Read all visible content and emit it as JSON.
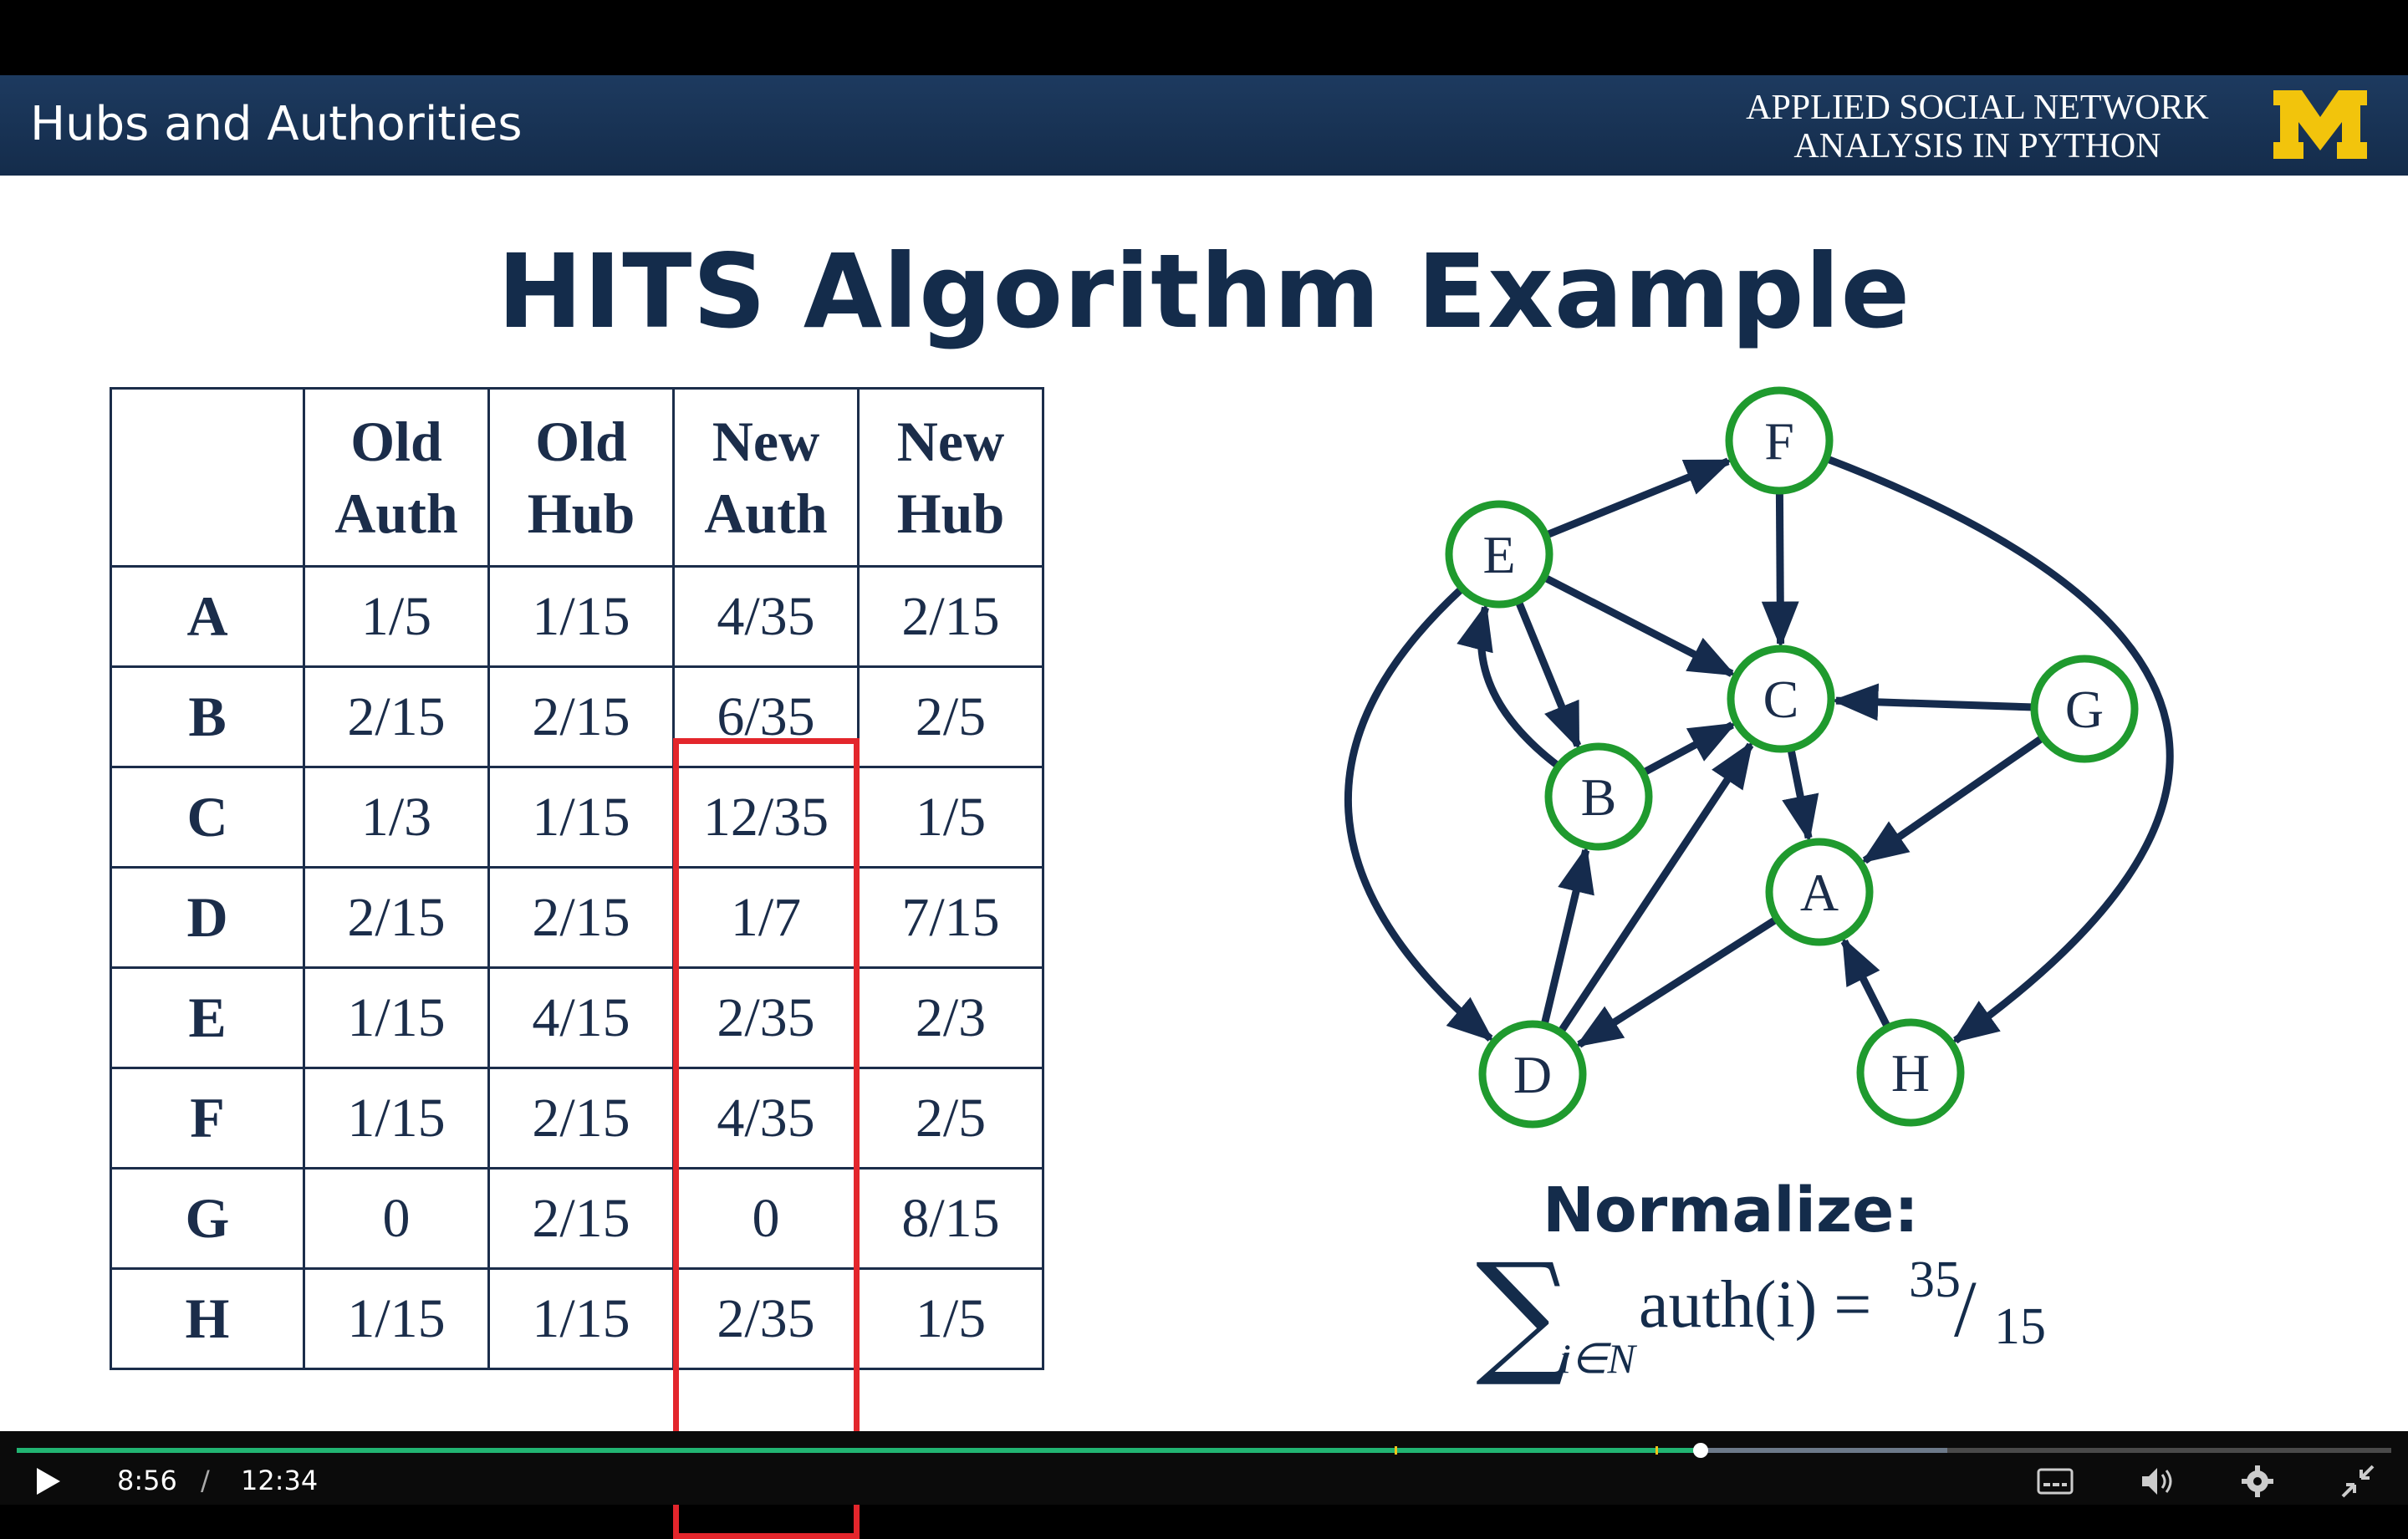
{
  "header": {
    "title": "Hubs and Authorities",
    "course_line1": "APPLIED SOCIAL NETWORK",
    "course_line2": "ANALYSIS IN PYTHON",
    "logo": "M",
    "brand_color": "#152b4d",
    "logo_color": "#f2c40c"
  },
  "slide": {
    "heading": "HITS Algorithm Example",
    "table": {
      "headers": [
        "",
        [
          "Old",
          "Auth"
        ],
        [
          "Old",
          "Hub"
        ],
        [
          "New",
          "Auth"
        ],
        [
          "New",
          "Hub"
        ]
      ],
      "rows": [
        [
          "A",
          "1/5",
          "1/15",
          "4/35",
          "2/15"
        ],
        [
          "B",
          "2/15",
          "2/15",
          "6/35",
          "2/5"
        ],
        [
          "C",
          "1/3",
          "1/15",
          "12/35",
          "1/5"
        ],
        [
          "D",
          "2/15",
          "2/15",
          "1/7",
          "7/15"
        ],
        [
          "E",
          "1/15",
          "4/15",
          "2/35",
          "2/3"
        ],
        [
          "F",
          "1/15",
          "2/15",
          "4/35",
          "2/5"
        ],
        [
          "G",
          "0",
          "2/15",
          "0",
          "8/15"
        ],
        [
          "H",
          "1/15",
          "1/15",
          "2/35",
          "1/5"
        ]
      ],
      "highlighted_column": "New Auth",
      "highlight_color": "#e3262c"
    },
    "graph": {
      "nodes": [
        "A",
        "B",
        "C",
        "D",
        "E",
        "F",
        "G",
        "H"
      ],
      "edges": [
        [
          "E",
          "F"
        ],
        [
          "F",
          "C"
        ],
        [
          "E",
          "C"
        ],
        [
          "E",
          "B"
        ],
        [
          "B",
          "E"
        ],
        [
          "B",
          "C"
        ],
        [
          "G",
          "C"
        ],
        [
          "G",
          "A"
        ],
        [
          "C",
          "A"
        ],
        [
          "D",
          "B"
        ],
        [
          "D",
          "C"
        ],
        [
          "A",
          "D"
        ],
        [
          "H",
          "A"
        ],
        [
          "E",
          "D"
        ],
        [
          "F",
          "H"
        ]
      ],
      "node_color": "#1f9a2e",
      "edge_color": "#152b4d"
    },
    "normalize": {
      "label": "Normalize:",
      "sum_symbol": "∑",
      "subscript": "i∈N",
      "expression": "auth(i) =",
      "numerator": "35",
      "slash": "/",
      "denominator": "15"
    }
  },
  "player": {
    "current_time": "8:56",
    "separator": "/",
    "duration": "12:34",
    "progress_fraction": 0.7093,
    "buffered_fraction": 0.813,
    "progress_color": "#22b573",
    "icons": [
      "play-icon",
      "captions-icon",
      "volume-icon",
      "settings-icon",
      "exit-fullscreen-icon"
    ]
  }
}
